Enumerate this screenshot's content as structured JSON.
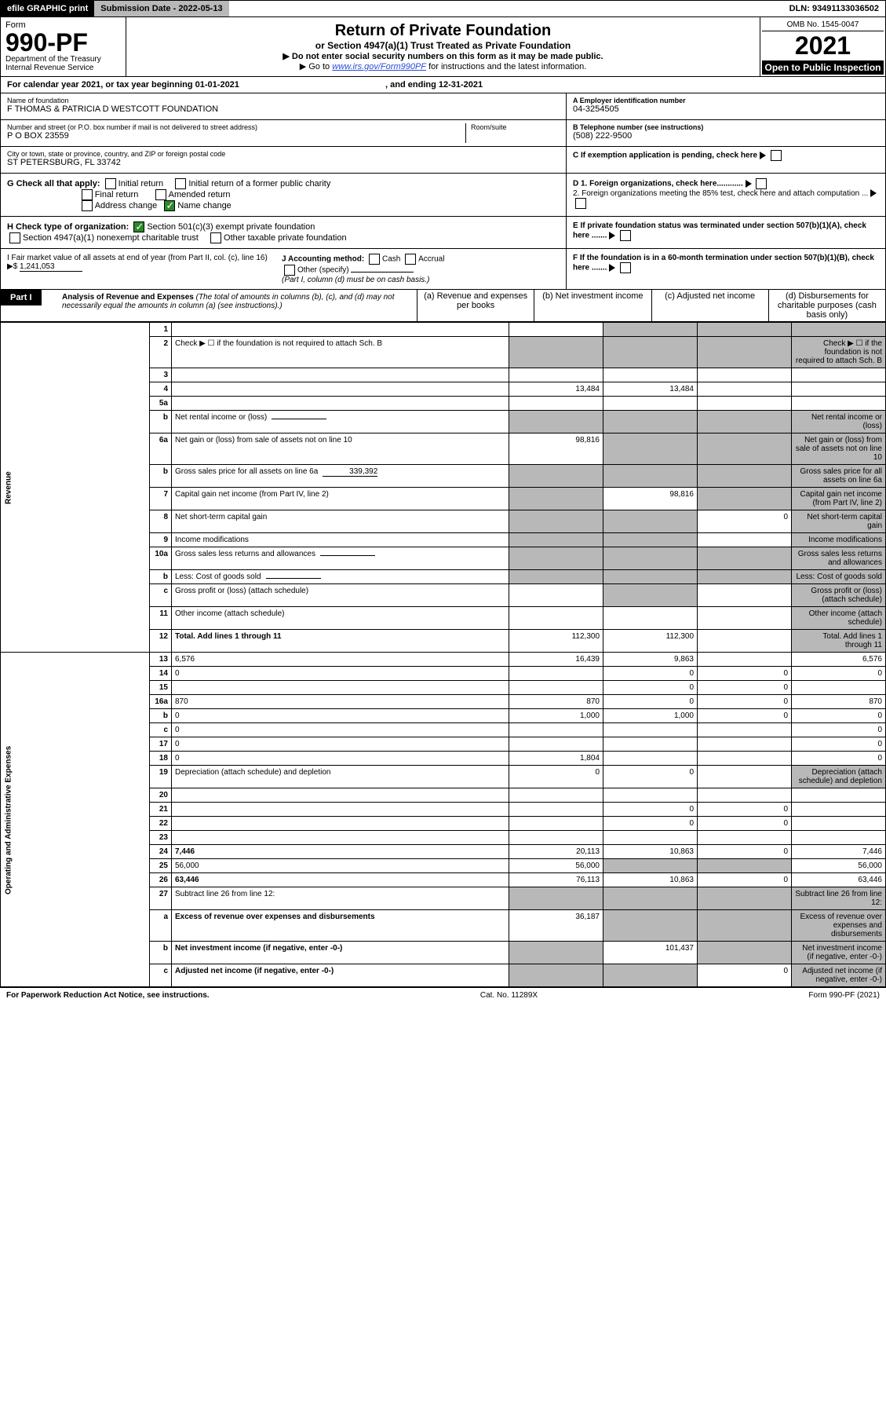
{
  "topbar": {
    "efile": "efile GRAPHIC print",
    "submission": "Submission Date - 2022-05-13",
    "dln": "DLN: 93491133036502"
  },
  "header": {
    "form_label": "Form",
    "form_no": "990-PF",
    "dept": "Department of the Treasury\nInternal Revenue Service",
    "title": "Return of Private Foundation",
    "sub1": "or Section 4947(a)(1) Trust Treated as Private Foundation",
    "note1": "▶ Do not enter social security numbers on this form as it may be made public.",
    "note2_pre": "▶ Go to ",
    "note2_link": "www.irs.gov/Form990PF",
    "note2_post": " for instructions and the latest information.",
    "omb": "OMB No. 1545-0047",
    "year": "2021",
    "open": "Open to Public Inspection"
  },
  "cal": {
    "text": "For calendar year 2021, or tax year beginning 01-01-2021",
    "ending": ", and ending 12-31-2021"
  },
  "id": {
    "name_label": "Name of foundation",
    "name": "F THOMAS & PATRICIA D WESTCOTT FOUNDATION",
    "addr_label": "Number and street (or P.O. box number if mail is not delivered to street address)",
    "addr": "P O BOX 23559",
    "room_label": "Room/suite",
    "city_label": "City or town, state or province, country, and ZIP or foreign postal code",
    "city": "ST PETERSBURG, FL  33742",
    "a_label": "A Employer identification number",
    "a_val": "04-3254505",
    "b_label": "B Telephone number (see instructions)",
    "b_val": "(508) 222-9500",
    "c_label": "C If exemption application is pending, check here",
    "d1": "D 1. Foreign organizations, check here............",
    "d2": "2. Foreign organizations meeting the 85% test, check here and attach computation ...",
    "e": "E  If private foundation status was terminated under section 507(b)(1)(A), check here .......",
    "f": "F  If the foundation is in a 60-month termination under section 507(b)(1)(B), check here .......",
    "g_label": "G Check all that apply:",
    "g_opts": [
      "Initial return",
      "Final return",
      "Address change",
      "Initial return of a former public charity",
      "Amended return",
      "Name change"
    ],
    "h_label": "H Check type of organization:",
    "h_opts": [
      "Section 501(c)(3) exempt private foundation",
      "Section 4947(a)(1) nonexempt charitable trust",
      "Other taxable private foundation"
    ],
    "i_label": "I Fair market value of all assets at end of year (from Part II, col. (c), line 16) ▶$",
    "i_val": "1,241,053",
    "j_label": "J Accounting method:",
    "j_opts": [
      "Cash",
      "Accrual"
    ],
    "j_other": "Other (specify)",
    "j_note": "(Part I, column (d) must be on cash basis.)"
  },
  "part1": {
    "label": "Part I",
    "title": "Analysis of Revenue and Expenses",
    "title_note": " (The total of amounts in columns (b), (c), and (d) may not necessarily equal the amounts in column (a) (see instructions).)",
    "cols": [
      "(a) Revenue and expenses per books",
      "(b) Net investment income",
      "(c) Adjusted net income",
      "(d) Disbursements for charitable purposes (cash basis only)"
    ]
  },
  "side": {
    "rev": "Revenue",
    "exp": "Operating and Administrative Expenses"
  },
  "rows": [
    {
      "n": "1",
      "d": "",
      "a": "",
      "b": "",
      "c": "",
      "grey_bcd": true
    },
    {
      "n": "2",
      "d": "Check ▶ ☐ if the foundation is not required to attach Sch. B",
      "a": "",
      "grey_all": true
    },
    {
      "n": "3",
      "d": "",
      "a": "",
      "b": "",
      "c": ""
    },
    {
      "n": "4",
      "d": "",
      "a": "13,484",
      "b": "13,484",
      "c": ""
    },
    {
      "n": "5a",
      "d": "",
      "a": "",
      "b": "",
      "c": ""
    },
    {
      "n": "b",
      "d": "Net rental income or (loss)",
      "inline": "",
      "grey_all": true
    },
    {
      "n": "6a",
      "d": "Net gain or (loss) from sale of assets not on line 10",
      "a": "98,816",
      "grey_bcd": true
    },
    {
      "n": "b",
      "d": "Gross sales price for all assets on line 6a",
      "inline": "339,392",
      "grey_all": true
    },
    {
      "n": "7",
      "d": "Capital gain net income (from Part IV, line 2)",
      "a_grey": true,
      "b": "98,816",
      "c_grey": true,
      "d_grey": true
    },
    {
      "n": "8",
      "d": "Net short-term capital gain",
      "a_grey": true,
      "b_grey": true,
      "c": "0",
      "d_grey": true
    },
    {
      "n": "9",
      "d": "Income modifications",
      "a_grey": true,
      "b_grey": true,
      "c": "",
      "d_grey": true
    },
    {
      "n": "10a",
      "d": "Gross sales less returns and allowances",
      "inline": "",
      "grey_all": true
    },
    {
      "n": "b",
      "d": "Less: Cost of goods sold",
      "inline": "",
      "grey_all": true
    },
    {
      "n": "c",
      "d": "Gross profit or (loss) (attach schedule)",
      "a": "",
      "b_grey": true,
      "c": "",
      "d_grey": true
    },
    {
      "n": "11",
      "d": "Other income (attach schedule)",
      "a": "",
      "b": "",
      "c": "",
      "d_grey": true
    },
    {
      "n": "12",
      "d": "Total. Add lines 1 through 11",
      "bold": true,
      "a": "112,300",
      "b": "112,300",
      "c": "",
      "d_grey": true
    },
    {
      "n": "13",
      "d": "6,576",
      "a": "16,439",
      "b": "9,863",
      "c": ""
    },
    {
      "n": "14",
      "d": "0",
      "a": "",
      "b": "0",
      "c": "0"
    },
    {
      "n": "15",
      "d": "",
      "a": "",
      "b": "0",
      "c": "0"
    },
    {
      "n": "16a",
      "d": "870",
      "a": "870",
      "b": "0",
      "c": "0"
    },
    {
      "n": "b",
      "d": "0",
      "a": "1,000",
      "b": "1,000",
      "c": "0"
    },
    {
      "n": "c",
      "d": "0",
      "a": "",
      "b": "",
      "c": ""
    },
    {
      "n": "17",
      "d": "0",
      "a": "",
      "b": "",
      "c": ""
    },
    {
      "n": "18",
      "d": "0",
      "a": "1,804",
      "b": "",
      "c": ""
    },
    {
      "n": "19",
      "d": "Depreciation (attach schedule) and depletion",
      "a": "0",
      "b": "0",
      "c": "",
      "d_grey": true
    },
    {
      "n": "20",
      "d": "",
      "a": "",
      "b": "",
      "c": ""
    },
    {
      "n": "21",
      "d": "",
      "a": "",
      "b": "0",
      "c": "0"
    },
    {
      "n": "22",
      "d": "",
      "a": "",
      "b": "0",
      "c": "0"
    },
    {
      "n": "23",
      "d": "",
      "a": "",
      "b": "",
      "c": ""
    },
    {
      "n": "24",
      "d": "7,446",
      "bold": true,
      "a": "20,113",
      "b": "10,863",
      "c": "0"
    },
    {
      "n": "25",
      "d": "56,000",
      "a": "56,000",
      "b_grey": true,
      "c_grey": true
    },
    {
      "n": "26",
      "d": "63,446",
      "bold": true,
      "a": "76,113",
      "b": "10,863",
      "c": "0"
    },
    {
      "n": "27",
      "d": "Subtract line 26 from line 12:",
      "grey_all": true
    },
    {
      "n": "a",
      "d": "Excess of revenue over expenses and disbursements",
      "bold": true,
      "a": "36,187",
      "b_grey": true,
      "c_grey": true,
      "d_grey": true
    },
    {
      "n": "b",
      "d": "Net investment income (if negative, enter -0-)",
      "bold": true,
      "a_grey": true,
      "b": "101,437",
      "c_grey": true,
      "d_grey": true
    },
    {
      "n": "c",
      "d": "Adjusted net income (if negative, enter -0-)",
      "bold": true,
      "a_grey": true,
      "b_grey": true,
      "c": "0",
      "d_grey": true
    }
  ],
  "footer": {
    "left": "For Paperwork Reduction Act Notice, see instructions.",
    "mid": "Cat. No. 11289X",
    "right": "Form 990-PF (2021)"
  }
}
